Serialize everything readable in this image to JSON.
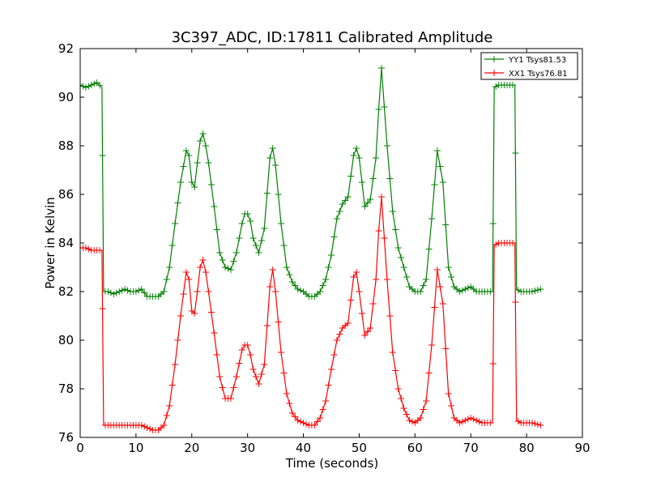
{
  "chart_data": {
    "type": "line",
    "title": "3C397_ADC, ID:17811 Calibrated Amplitude",
    "xlabel": "Time (seconds)",
    "ylabel": "Power in Kelvin",
    "xlim": [
      0,
      90
    ],
    "ylim": [
      76,
      92
    ],
    "xticks": [
      "0",
      "10",
      "20",
      "30",
      "40",
      "50",
      "60",
      "70",
      "80",
      "90"
    ],
    "yticks": [
      "76",
      "78",
      "80",
      "82",
      "84",
      "86",
      "88",
      "90",
      "92"
    ],
    "grid": false,
    "legend_position": "top-right",
    "marker": "plus",
    "series": [
      {
        "name": "YY1 Tsys81.53",
        "color": "#008000",
        "x": [
          0,
          1,
          2,
          3,
          3.9,
          4.2,
          5,
          6,
          7,
          8,
          9,
          10,
          11,
          12,
          13,
          14,
          15,
          16,
          17,
          18,
          19,
          19.5,
          20,
          20.5,
          21,
          21.5,
          22,
          22.5,
          23,
          24,
          25,
          26,
          27,
          28,
          29,
          29.5,
          30,
          30.5,
          31,
          32,
          33,
          34,
          34.5,
          35,
          36,
          37,
          38,
          39,
          40,
          41,
          42,
          43,
          44,
          45,
          46,
          47,
          48,
          49,
          49.5,
          50,
          51,
          52,
          53,
          53.5,
          54,
          55,
          56,
          57,
          58,
          59,
          60,
          61,
          62,
          63,
          64,
          65,
          66,
          67,
          68,
          69,
          70,
          71,
          72,
          73,
          73.9,
          74.2,
          75,
          76,
          77,
          77.9,
          78.2,
          79,
          80,
          81,
          82.5
        ],
        "y": [
          90.5,
          90.4,
          90.5,
          90.6,
          90.4,
          82.0,
          82.0,
          81.9,
          82.0,
          82.1,
          82.0,
          82.0,
          82.1,
          81.8,
          81.8,
          81.8,
          82.0,
          83.0,
          84.8,
          86.5,
          87.8,
          87.6,
          86.5,
          86.3,
          87.3,
          88.2,
          88.5,
          88.0,
          87.3,
          85.5,
          83.6,
          83.0,
          82.9,
          83.6,
          84.8,
          85.2,
          85.2,
          84.9,
          84.2,
          83.6,
          84.6,
          87.5,
          87.9,
          87.2,
          84.8,
          83.0,
          82.4,
          82.1,
          82.0,
          81.8,
          81.8,
          82.0,
          82.5,
          83.5,
          85.0,
          85.6,
          85.9,
          87.6,
          87.9,
          87.5,
          85.5,
          85.8,
          87.5,
          89.5,
          91.2,
          88.0,
          85.3,
          83.8,
          83.0,
          82.2,
          82.0,
          82.0,
          82.5,
          85.0,
          87.8,
          86.5,
          83.0,
          82.2,
          82.0,
          82.1,
          82.2,
          82.0,
          82.0,
          82.0,
          82.0,
          90.4,
          90.5,
          90.5,
          90.5,
          90.5,
          82.1,
          82.0,
          82.0,
          82.0,
          82.1
        ]
      },
      {
        "name": "XX1 Tsys76.81",
        "color": "#ff0000",
        "x": [
          0,
          1,
          2,
          3,
          3.9,
          4.2,
          5,
          6,
          7,
          8,
          9,
          10,
          11,
          12,
          13,
          14,
          15,
          16,
          17,
          18,
          19,
          19.5,
          20,
          20.5,
          21,
          21.5,
          22,
          22.5,
          23,
          24,
          25,
          26,
          27,
          28,
          29,
          29.5,
          30,
          30.5,
          31,
          32,
          33,
          34,
          34.5,
          35,
          36,
          37,
          38,
          39,
          40,
          41,
          42,
          43,
          44,
          45,
          46,
          47,
          48,
          49,
          49.5,
          50,
          51,
          52,
          53,
          53.5,
          54,
          55,
          56,
          57,
          58,
          59,
          60,
          61,
          62,
          63,
          64,
          65,
          66,
          67,
          68,
          69,
          70,
          71,
          72,
          73,
          73.9,
          74.2,
          75,
          76,
          77,
          77.9,
          78.2,
          79,
          80,
          81,
          82.5
        ],
        "y": [
          83.8,
          83.8,
          83.7,
          83.7,
          83.7,
          76.5,
          76.5,
          76.5,
          76.5,
          76.5,
          76.5,
          76.5,
          76.5,
          76.4,
          76.3,
          76.3,
          76.5,
          77.3,
          79.0,
          81.0,
          82.8,
          82.5,
          81.2,
          81.1,
          82.0,
          83.0,
          83.3,
          82.8,
          82.0,
          80.3,
          78.5,
          77.6,
          77.6,
          78.5,
          79.6,
          79.8,
          79.8,
          79.4,
          78.8,
          78.2,
          79.0,
          82.2,
          82.9,
          82.0,
          79.5,
          77.8,
          77.0,
          76.7,
          76.6,
          76.5,
          76.5,
          76.8,
          77.5,
          78.8,
          80.0,
          80.5,
          80.7,
          82.6,
          82.8,
          82.0,
          80.2,
          80.5,
          82.5,
          84.5,
          85.9,
          82.5,
          79.5,
          78.0,
          77.2,
          76.7,
          76.6,
          76.8,
          77.5,
          79.8,
          82.9,
          81.5,
          77.8,
          76.8,
          76.6,
          76.7,
          76.8,
          76.7,
          76.6,
          76.6,
          76.6,
          83.9,
          84.0,
          84.0,
          84.0,
          84.0,
          76.7,
          76.6,
          76.6,
          76.6,
          76.5
        ]
      }
    ]
  }
}
